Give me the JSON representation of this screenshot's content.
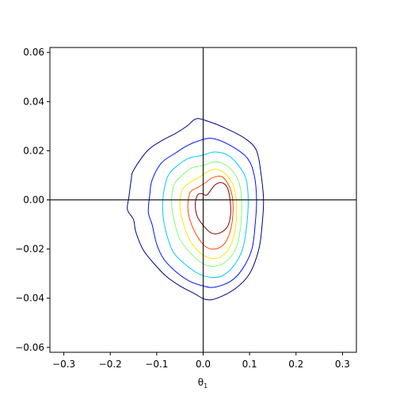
{
  "chart_data": {
    "type": "contour",
    "title": "",
    "xlabel": "θ",
    "xlabel_sub": "1",
    "ylabel": "",
    "xlim": [
      -0.33,
      0.33
    ],
    "ylim": [
      -0.062,
      0.062
    ],
    "x_ticks": [
      -0.3,
      -0.2,
      -0.1,
      0.0,
      0.1,
      0.2,
      0.3
    ],
    "x_tick_labels": [
      "−0.3",
      "−0.2",
      "−0.1",
      "0.0",
      "0.1",
      "0.2",
      "0.3"
    ],
    "y_ticks": [
      -0.06,
      -0.04,
      -0.02,
      0.0,
      0.02,
      0.04,
      0.06
    ],
    "y_tick_labels": [
      "−0.06",
      "−0.04",
      "−0.02",
      "0.00",
      "0.02",
      "0.04",
      "0.06"
    ],
    "grid": false,
    "reference_lines": {
      "x": 0.0,
      "y": 0.0,
      "color": "#000000"
    },
    "colormap": "jet",
    "contours": [
      {
        "level": 1,
        "color": "#00007f",
        "points": [
          [
            -0.015,
            0.033
          ],
          [
            0.01,
            0.032
          ],
          [
            0.05,
            0.029
          ],
          [
            0.09,
            0.025
          ],
          [
            0.115,
            0.02
          ],
          [
            0.125,
            0.01
          ],
          [
            0.13,
            0.0
          ],
          [
            0.127,
            -0.01
          ],
          [
            0.12,
            -0.02
          ],
          [
            0.1,
            -0.03
          ],
          [
            0.07,
            -0.036
          ],
          [
            0.03,
            -0.04
          ],
          [
            0.005,
            -0.0405
          ],
          [
            -0.02,
            -0.038
          ],
          [
            -0.05,
            -0.035
          ],
          [
            -0.08,
            -0.031
          ],
          [
            -0.11,
            -0.025
          ],
          [
            -0.13,
            -0.02
          ],
          [
            -0.145,
            -0.013
          ],
          [
            -0.15,
            -0.008
          ],
          [
            -0.163,
            -0.004
          ],
          [
            -0.16,
            0.001
          ],
          [
            -0.155,
            0.008
          ],
          [
            -0.15,
            0.012
          ],
          [
            -0.12,
            0.02
          ],
          [
            -0.09,
            0.024
          ],
          [
            -0.06,
            0.027
          ],
          [
            -0.035,
            0.03
          ]
        ]
      },
      {
        "level": 2,
        "color": "#0010ff",
        "points": [
          [
            -0.01,
            0.024
          ],
          [
            0.02,
            0.025
          ],
          [
            0.06,
            0.022
          ],
          [
            0.095,
            0.017
          ],
          [
            0.11,
            0.01
          ],
          [
            0.115,
            0.0
          ],
          [
            0.112,
            -0.01
          ],
          [
            0.105,
            -0.02
          ],
          [
            0.085,
            -0.028
          ],
          [
            0.06,
            -0.033
          ],
          [
            0.025,
            -0.0355
          ],
          [
            0.0,
            -0.035
          ],
          [
            -0.03,
            -0.033
          ],
          [
            -0.06,
            -0.029
          ],
          [
            -0.085,
            -0.024
          ],
          [
            -0.1,
            -0.018
          ],
          [
            -0.11,
            -0.01
          ],
          [
            -0.118,
            -0.005
          ],
          [
            -0.115,
            0.002
          ],
          [
            -0.11,
            0.008
          ],
          [
            -0.09,
            0.015
          ],
          [
            -0.06,
            0.019
          ],
          [
            -0.035,
            0.022
          ]
        ]
      },
      {
        "level": 3,
        "color": "#00c8ff",
        "points": [
          [
            -0.005,
            0.018
          ],
          [
            0.025,
            0.0195
          ],
          [
            0.055,
            0.018
          ],
          [
            0.08,
            0.013
          ],
          [
            0.093,
            0.008
          ],
          [
            0.097,
            0.0
          ],
          [
            0.094,
            -0.01
          ],
          [
            0.085,
            -0.02
          ],
          [
            0.065,
            -0.027
          ],
          [
            0.04,
            -0.031
          ],
          [
            0.015,
            -0.0315
          ],
          [
            -0.01,
            -0.03
          ],
          [
            -0.04,
            -0.026
          ],
          [
            -0.065,
            -0.021
          ],
          [
            -0.08,
            -0.013
          ],
          [
            -0.087,
            -0.005
          ],
          [
            -0.085,
            0.003
          ],
          [
            -0.075,
            0.01
          ],
          [
            -0.055,
            0.014
          ],
          [
            -0.03,
            0.017
          ]
        ]
      },
      {
        "level": 4,
        "color": "#7cff79",
        "points": [
          [
            0.0,
            0.014
          ],
          [
            0.025,
            0.0155
          ],
          [
            0.05,
            0.014
          ],
          [
            0.07,
            0.01
          ],
          [
            0.08,
            0.005
          ],
          [
            0.083,
            -0.003
          ],
          [
            0.08,
            -0.012
          ],
          [
            0.07,
            -0.02
          ],
          [
            0.05,
            -0.025
          ],
          [
            0.025,
            -0.027
          ],
          [
            0.0,
            -0.026
          ],
          [
            -0.025,
            -0.022
          ],
          [
            -0.05,
            -0.016
          ],
          [
            -0.063,
            -0.008
          ],
          [
            -0.068,
            -0.001
          ],
          [
            -0.063,
            0.006
          ],
          [
            -0.045,
            0.01
          ],
          [
            -0.025,
            0.013
          ]
        ]
      },
      {
        "level": 5,
        "color": "#ffe600",
        "points": [
          [
            0.005,
            0.011
          ],
          [
            0.025,
            0.0125
          ],
          [
            0.045,
            0.011
          ],
          [
            0.062,
            0.007
          ],
          [
            0.07,
            0.002
          ],
          [
            0.072,
            -0.006
          ],
          [
            0.067,
            -0.014
          ],
          [
            0.055,
            -0.02
          ],
          [
            0.035,
            -0.0235
          ],
          [
            0.012,
            -0.0235
          ],
          [
            -0.01,
            -0.021
          ],
          [
            -0.03,
            -0.016
          ],
          [
            -0.045,
            -0.008
          ],
          [
            -0.05,
            -0.002
          ],
          [
            -0.045,
            0.004
          ],
          [
            -0.03,
            0.007
          ],
          [
            -0.01,
            0.009
          ]
        ]
      },
      {
        "level": 6,
        "color": "#ff4a00",
        "points": [
          [
            0.005,
            0.007
          ],
          [
            0.02,
            0.009
          ],
          [
            0.04,
            0.0095
          ],
          [
            0.055,
            0.006
          ],
          [
            0.063,
            0.001
          ],
          [
            0.064,
            -0.006
          ],
          [
            0.058,
            -0.013
          ],
          [
            0.045,
            -0.018
          ],
          [
            0.025,
            -0.02
          ],
          [
            0.005,
            -0.019
          ],
          [
            -0.012,
            -0.015
          ],
          [
            -0.027,
            -0.009
          ],
          [
            -0.033,
            -0.003
          ],
          [
            -0.028,
            0.003
          ],
          [
            -0.012,
            0.005
          ]
        ]
      },
      {
        "level": 7,
        "color": "#7f0000",
        "points": [
          [
            0.008,
            0.002
          ],
          [
            0.025,
            0.006
          ],
          [
            0.04,
            0.007
          ],
          [
            0.052,
            0.005
          ],
          [
            0.058,
            0.0
          ],
          [
            0.059,
            -0.006
          ],
          [
            0.052,
            -0.011
          ],
          [
            0.035,
            -0.0135
          ],
          [
            0.018,
            -0.0135
          ],
          [
            0.003,
            -0.011
          ],
          [
            -0.012,
            -0.007
          ],
          [
            -0.017,
            -0.002
          ],
          [
            -0.012,
            0.002
          ],
          [
            -0.002,
            0.0025
          ]
        ]
      }
    ]
  }
}
